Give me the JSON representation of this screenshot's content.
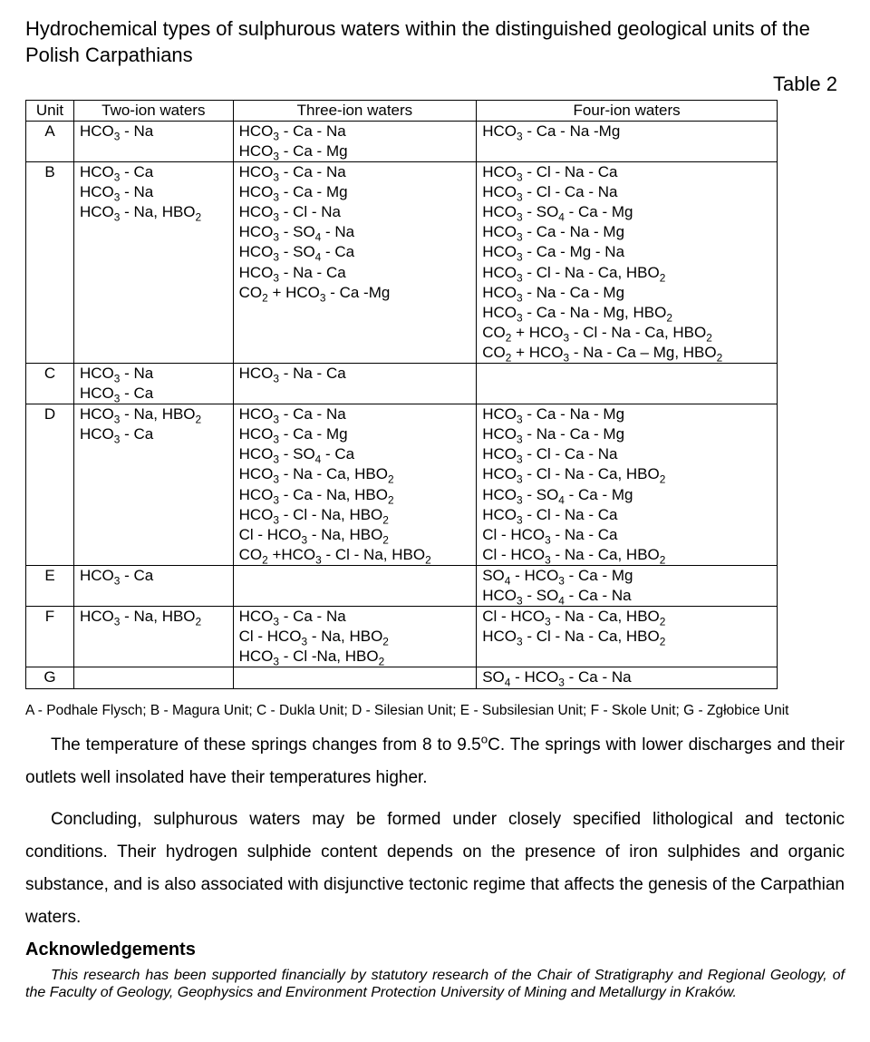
{
  "title": "Hydrochemical types of sulphurous waters within the distinguished geological units of the Polish Carpathians",
  "table_label": "Table 2",
  "columns": [
    "Unit",
    "Two-ion waters",
    "Three-ion waters",
    "Four-ion waters"
  ],
  "rows": [
    {
      "unit": "A",
      "two": [
        "HCO~3~ - Na"
      ],
      "three": [
        "HCO~3~ - Ca - Na",
        "HCO~3~ - Ca - Mg"
      ],
      "four": [
        "HCO~3~ - Ca - Na -Mg"
      ]
    },
    {
      "unit": "B",
      "two": [
        "HCO~3~ - Ca",
        "HCO~3~ - Na",
        "HCO~3~ - Na, HBO~2~"
      ],
      "three": [
        "HCO~3~ - Ca - Na",
        "HCO~3~ - Ca - Mg",
        "HCO~3~ - Cl - Na",
        "HCO~3~ - SO~4~ - Na",
        "HCO~3~ - SO~4~ - Ca",
        "HCO~3~ - Na - Ca",
        "CO~2~ + HCO~3~ - Ca -Mg"
      ],
      "four": [
        "HCO~3~ - Cl - Na - Ca",
        "HCO~3~ - Cl - Ca - Na",
        "HCO~3~ - SO~4~ - Ca - Mg",
        "HCO~3~ - Ca - Na - Mg",
        "HCO~3~ - Ca - Mg - Na",
        "HCO~3~ - Cl - Na - Ca, HBO~2~",
        "HCO~3~ - Na - Ca - Mg",
        "HCO~3~ - Ca - Na - Mg, HBO~2~",
        "CO~2~ + HCO~3~ - Cl - Na - Ca, HBO~2~",
        "CO~2~ + HCO~3~ - Na - Ca – Mg, HBO~2~"
      ]
    },
    {
      "unit": "C",
      "two": [
        "HCO~3~ - Na",
        "HCO~3~ - Ca"
      ],
      "three": [
        "HCO~3~ - Na - Ca"
      ],
      "four": []
    },
    {
      "unit": "D",
      "two": [
        "HCO~3~ - Na, HBO~2~",
        "HCO~3~ - Ca"
      ],
      "three": [
        "HCO~3~ - Ca - Na",
        "HCO~3~ - Ca - Mg",
        "HCO~3~ - SO~4~ - Ca",
        "HCO~3~ - Na - Ca, HBO~2~",
        "HCO~3~ - Ca - Na, HBO~2~",
        "HCO~3~ - Cl - Na, HBO~2~",
        "Cl - HCO~3~ - Na, HBO~2~",
        "CO~2~ +HCO~3~ - Cl - Na, HBO~2~"
      ],
      "four": [
        "HCO~3~ - Ca - Na - Mg",
        "HCO~3~ - Na - Ca - Mg",
        "HCO~3~ - Cl - Ca - Na",
        "HCO~3~ - Cl - Na - Ca, HBO~2~",
        "HCO~3~ - SO~4~ - Ca - Mg",
        "HCO~3~ - Cl - Na - Ca",
        "Cl - HCO~3~ - Na - Ca",
        "Cl - HCO~3~ - Na - Ca, HBO~2~"
      ]
    },
    {
      "unit": "E",
      "two": [
        "HCO~3~ - Ca"
      ],
      "three": [],
      "four": [
        "SO~4~ - HCO~3~ - Ca - Mg",
        "HCO~3~ - SO~4~ - Ca - Na"
      ]
    },
    {
      "unit": "F",
      "two": [
        "HCO~3~ - Na, HBO~2~"
      ],
      "three": [
        "HCO~3~ - Ca - Na",
        "Cl - HCO~3~ - Na, HBO~2~",
        "HCO~3~ - Cl -Na, HBO~2~"
      ],
      "four": [
        "Cl - HCO~3~ - Na - Ca, HBO~2~",
        "HCO~3~ - Cl - Na - Ca, HBO~2~"
      ]
    },
    {
      "unit": "G",
      "two": [],
      "three": [],
      "four": [
        "SO~4~ - HCO~3~ - Ca - Na"
      ]
    }
  ],
  "legend": "A - Podhale Flysch; B - Magura Unit; C - Dukla Unit; D - Silesian Unit; E - Subsilesian Unit; F - Skole Unit; G - Zgłobice Unit",
  "para1": "The temperature of these springs changes from 8 to 9.5^o^C. The springs with lower discharges and their outlets well insolated have their temperatures higher.",
  "para2": "Concluding, sulphurous waters may be formed under closely specified lithological and tectonic conditions. Their hydrogen sulphide content depends on the presence of iron sulphides and organic substance, and is also associated with disjunctive tectonic regime that affects the genesis of the Carpathian waters.",
  "ack_head": "Acknowledgements",
  "ack_body": "This research has been supported financially by statutory research of the Chair of Stratigraphy and Regional Geology, of the Faculty of Geology, Geophysics and Environment Protection University of Mining and Metallurgy in Kraków."
}
